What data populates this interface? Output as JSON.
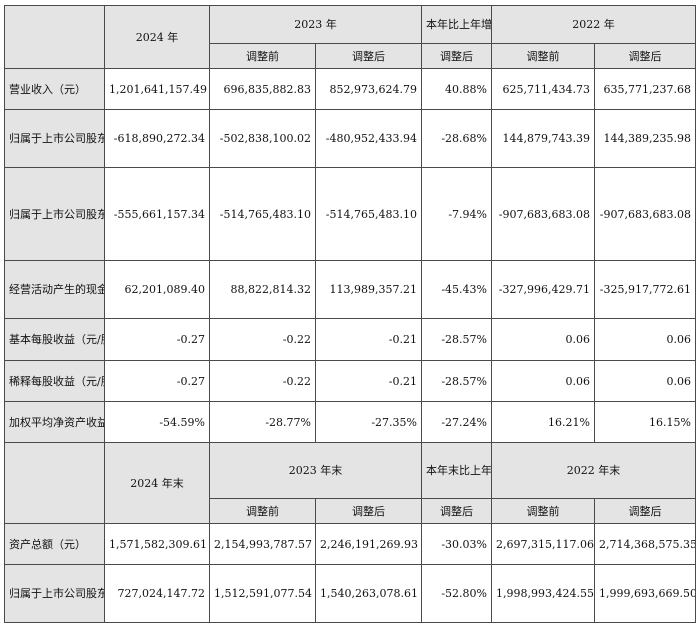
{
  "header1": {
    "y2024": "2024 年",
    "y2023": "2023 年",
    "change": "本年比上年增减",
    "y2022": "2022 年",
    "before": "调整前",
    "after": "调整后",
    "after_change": "调整后"
  },
  "rows1": [
    {
      "label": "营业收入（元）",
      "v": [
        "1,201,641,157.49",
        "696,835,882.83",
        "852,973,624.79",
        "40.88%",
        "625,711,434.73",
        "635,771,237.68"
      ]
    },
    {
      "label": "归属于上市公司股东的净利润（元）",
      "v": [
        "-618,890,272.34",
        "-502,838,100.02",
        "-480,952,433.94",
        "-28.68%",
        "144,879,743.39",
        "144,389,235.98"
      ]
    },
    {
      "label": "归属于上市公司股东的扣除非经常性损益的净利润（元）",
      "v": [
        "-555,661,157.34",
        "-514,765,483.10",
        "-514,765,483.10",
        "-7.94%",
        "-907,683,683.08",
        "-907,683,683.08"
      ]
    },
    {
      "label": "经营活动产生的现金流量净额（元）",
      "v": [
        "62,201,089.40",
        "88,822,814.32",
        "113,989,357.21",
        "-45.43%",
        "-327,996,429.71",
        "-325,917,772.61"
      ]
    },
    {
      "label": "基本每股收益（元/股）",
      "v": [
        "-0.27",
        "-0.22",
        "-0.21",
        "-28.57%",
        "0.06",
        "0.06"
      ]
    },
    {
      "label": "稀释每股收益（元/股）",
      "v": [
        "-0.27",
        "-0.22",
        "-0.21",
        "-28.57%",
        "0.06",
        "0.06"
      ]
    },
    {
      "label": "加权平均净资产收益率",
      "v": [
        "-54.59%",
        "-28.77%",
        "-27.35%",
        "-27.24%",
        "16.21%",
        "16.15%"
      ]
    }
  ],
  "header2": {
    "y2024": "2024 年末",
    "y2023": "2023 年末",
    "change": "本年末比上年末增减",
    "y2022": "2022 年末",
    "before": "调整前",
    "after": "调整后",
    "after_change": "调整后"
  },
  "rows2": [
    {
      "label": "资产总额（元）",
      "v": [
        "1,571,582,309.61",
        "2,154,993,787.57",
        "2,246,191,269.93",
        "-30.03%",
        "2,697,315,117.06",
        "2,714,368,575.35"
      ]
    },
    {
      "label": "归属于上市公司股东的净资产（元）",
      "v": [
        "727,024,147.72",
        "1,512,591,077.54",
        "1,540,263,078.61",
        "-52.80%",
        "1,998,993,424.55",
        "1,999,693,669.50"
      ]
    }
  ]
}
